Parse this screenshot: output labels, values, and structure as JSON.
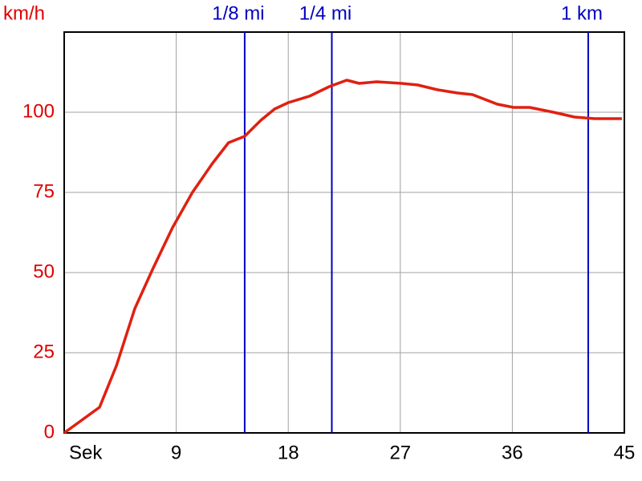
{
  "chart_data": {
    "type": "line",
    "y_label": "km/h",
    "x": [
      0,
      2.84,
      4.2,
      5.67,
      7.1,
      8.7,
      10.3,
      11.9,
      13.2,
      14.5,
      15.8,
      16.9,
      18,
      19.7,
      21.3,
      22.7,
      23.7,
      25.1,
      27.1,
      28.4,
      30,
      31.6,
      32.8,
      33.8,
      34.8,
      36.1,
      37.4,
      39.3,
      41,
      42.6,
      44.8
    ],
    "series": [
      {
        "color": "#e02010",
        "values": [
          0,
          8,
          21,
          38.75,
          51,
          64,
          75,
          84,
          90.5,
          92.5,
          97.5,
          101,
          103,
          105,
          108,
          110,
          109,
          109.5,
          109,
          108.5,
          107,
          106,
          105.5,
          104,
          102.5,
          101.5,
          101.5,
          100,
          98.5,
          98,
          98
        ]
      }
    ],
    "xlim": [
      0,
      45
    ],
    "xticks": [
      {
        "value": 0,
        "label": "Sek"
      },
      9,
      18,
      27,
      36,
      45
    ],
    "ylim": [
      0,
      125
    ],
    "yticks": [
      0,
      25,
      50,
      75,
      100
    ],
    "grid": true,
    "grid_color": "#a0a0a0",
    "y_label_color": "#e00000",
    "x_label_color": "#000000",
    "markers": [
      {
        "label": "1/8 mi",
        "x": 14.5
      },
      {
        "label": "1/4 mi",
        "x": 21.5
      },
      {
        "label": "1 km",
        "x": 42.1
      }
    ],
    "marker_color": "#0000c0"
  }
}
